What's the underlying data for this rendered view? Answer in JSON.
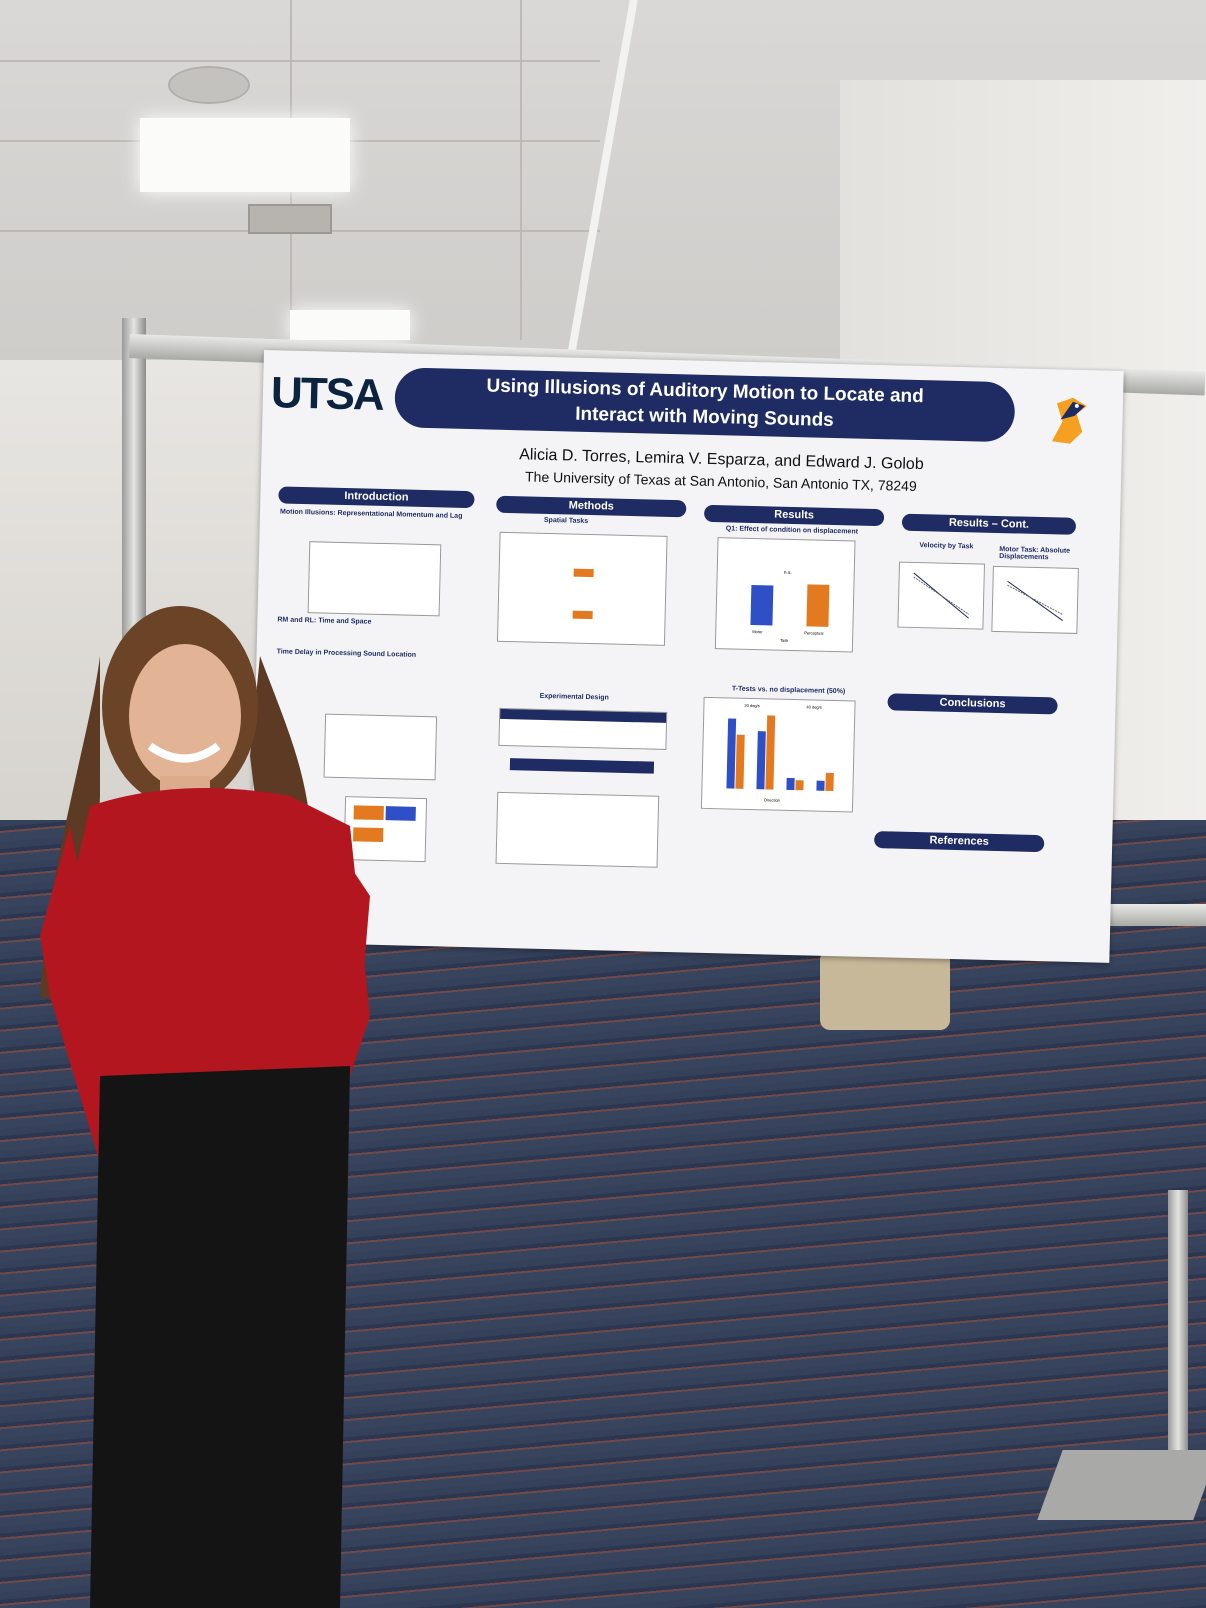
{
  "poster": {
    "logo": "UTSA",
    "title_line1": "Using Illusions of Auditory Motion to Locate and",
    "title_line2": "Interact with Moving Sounds",
    "authors": "Alicia D. Torres, Lemira V. Esparza, and Edward J. Golob",
    "affiliation": "The University of Texas at San Antonio, San Antonio TX, 78249",
    "sections": {
      "introduction": "Introduction",
      "methods": "Methods",
      "results": "Results",
      "results_cont": "Results – Cont.",
      "conclusions": "Conclusions",
      "references": "References"
    },
    "subheadings": {
      "intro1": "Motion Illusions: Representational Momentum and Lag",
      "intro2": "RM and RL: Time and Space",
      "intro3": "Time Delay in Processing Sound Location",
      "spatial_tasks": "Spatial Tasks",
      "experimental_design": "Experimental Design",
      "q1": "Q1: Effect of condition on displacement",
      "ttests": "T-Tests vs. no displacement (50%)",
      "velocity_by_task": "Velocity by Task",
      "motor_task": "Motor Task: Absolute Displacements"
    },
    "chart_labels": {
      "motor": "Motor",
      "perceptual": "Perceptual",
      "task": "Task",
      "ns": "n.s.",
      "deg20": "20 deg/s",
      "deg40": "40 deg/s",
      "direction": "Direction"
    }
  }
}
